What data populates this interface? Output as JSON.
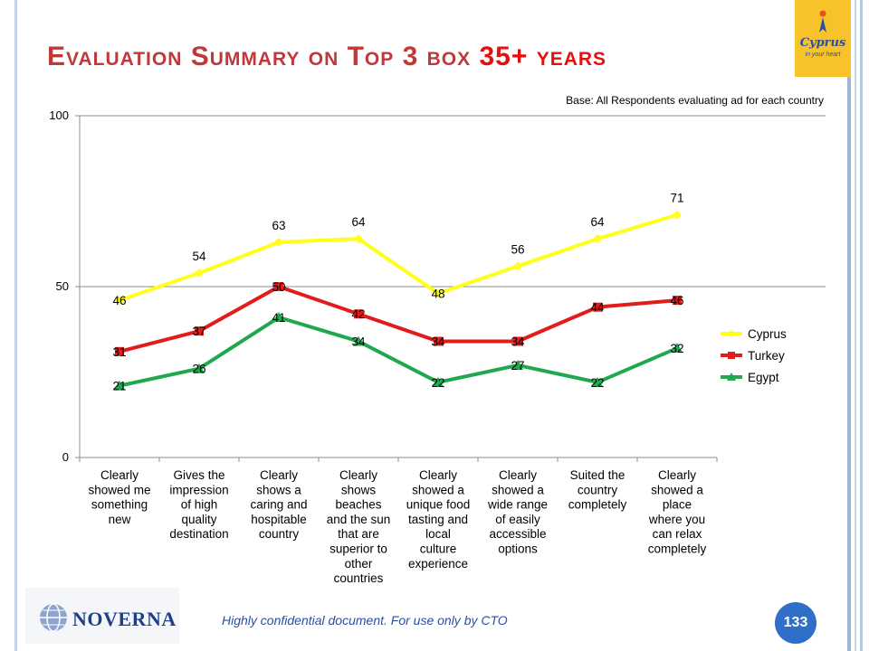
{
  "slide": {
    "title_prefix": "Evaluation Summary on Top 3 box",
    "title_highlight": "35+ years",
    "base_note": "Base: All Respondents evaluating ad for each country",
    "footer_note": "Highly confidential document. For use only by CTO",
    "page_number": "133",
    "logo_left_text": "NOVERNA",
    "logo_right_text": "Cyprus",
    "logo_right_subtext": "in your heart"
  },
  "colors": {
    "cyprus": "#ffff1a",
    "turkey": "#e21b1b",
    "egypt": "#1fa84f",
    "title": "#c0383a",
    "accent_blue": "#2f6fc8"
  },
  "chart_data": {
    "type": "line",
    "title": "",
    "xlabel": "",
    "ylabel": "",
    "ylim": [
      0,
      100
    ],
    "yticks": [
      "0",
      "50",
      "100"
    ],
    "legend_position": "right",
    "grid": "horizontal",
    "categories": [
      "Clearly showed me something new",
      "Gives the impression of high quality destination",
      "Clearly shows a caring and hospitable country",
      "Clearly shows beaches and the sun that are superior to other countries",
      "Clearly showed a unique food tasting and local culture experience",
      "Clearly showed a wide range of easily accessible options",
      "Suited the country completely",
      "Clearly showed a place where you can relax completely"
    ],
    "category_lines": [
      [
        "Clearly",
        "showed me",
        "something",
        "new"
      ],
      [
        "Gives the",
        "impression",
        "of high",
        "quality",
        "destination"
      ],
      [
        "Clearly",
        "shows a",
        "caring and",
        "hospitable",
        "country"
      ],
      [
        "Clearly",
        "shows",
        "beaches",
        "and the sun",
        "that are",
        "superior to",
        "other",
        "countries"
      ],
      [
        "Clearly",
        "showed a",
        "unique food",
        "tasting and",
        "local",
        "culture",
        "experience"
      ],
      [
        "Clearly",
        "showed a",
        "wide range",
        "of easily",
        "accessible",
        "options"
      ],
      [
        "Suited  the",
        "country",
        "completely"
      ],
      [
        "Clearly",
        "showed a",
        "place",
        "where you",
        "can relax",
        "completely"
      ]
    ],
    "series": [
      {
        "name": "Cyprus",
        "marker": "diamond",
        "values": [
          46,
          54,
          63,
          64,
          48,
          56,
          64,
          71
        ]
      },
      {
        "name": "Turkey",
        "marker": "square",
        "values": [
          31,
          37,
          50,
          42,
          34,
          34,
          44,
          46
        ]
      },
      {
        "name": "Egypt",
        "marker": "triangle",
        "values": [
          21,
          26,
          41,
          34,
          22,
          27,
          22,
          32
        ]
      }
    ]
  }
}
